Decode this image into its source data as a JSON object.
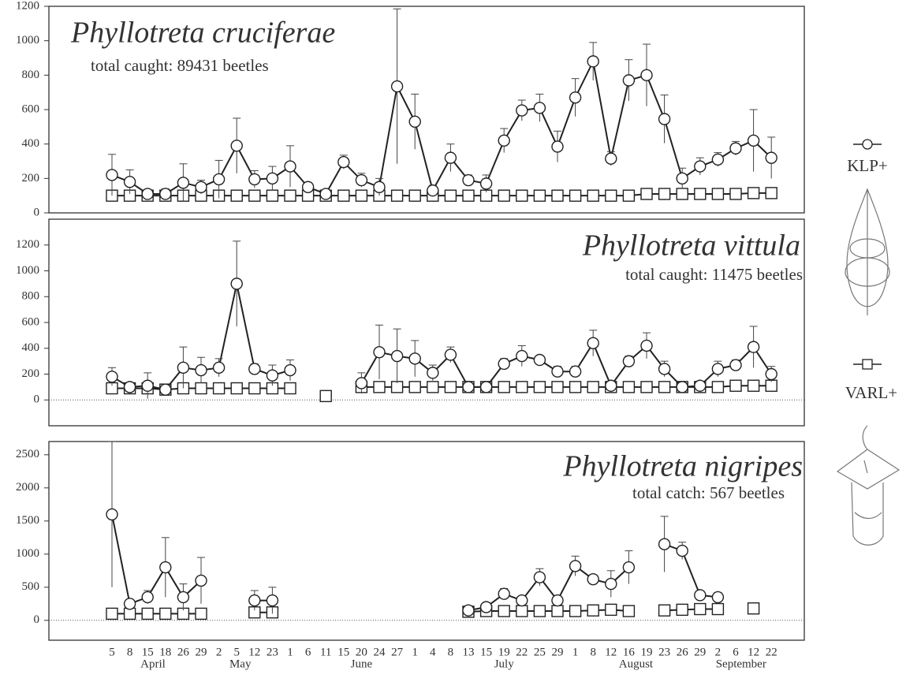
{
  "chart_data": [
    {
      "type": "line",
      "title": "Phyllotreta cruciferae",
      "subtitle": "total caught: 89431 beetles",
      "ylim": [
        0,
        1200
      ],
      "yticks": [
        0,
        200,
        400,
        600,
        800,
        1000,
        1200
      ],
      "series": [
        {
          "name": "KLP+",
          "marker": "circle",
          "color": "#222222",
          "values": [
            220,
            180,
            110,
            110,
            175,
            150,
            195,
            390,
            195,
            200,
            270,
            150,
            110,
            295,
            190,
            150,
            735,
            530,
            130,
            320,
            190,
            170,
            420,
            595,
            610,
            385,
            670,
            880,
            315,
            770,
            800,
            545,
            200,
            270,
            310,
            375,
            420,
            320
          ],
          "errors": [
            120,
            70,
            20,
            30,
            110,
            40,
            110,
            160,
            50,
            70,
            120,
            20,
            20,
            40,
            40,
            50,
            450,
            160,
            30,
            80,
            30,
            50,
            70,
            60,
            80,
            90,
            110,
            110,
            40,
            120,
            180,
            140,
            60,
            50,
            40,
            40,
            180,
            120
          ]
        },
        {
          "name": "VARL+",
          "marker": "square",
          "color": "#222222",
          "values": [
            100,
            100,
            100,
            100,
            100,
            100,
            100,
            100,
            100,
            100,
            100,
            100,
            100,
            100,
            100,
            100,
            100,
            100,
            100,
            100,
            100,
            100,
            100,
            100,
            100,
            100,
            100,
            100,
            100,
            100,
            110,
            110,
            110,
            110,
            110,
            110,
            115,
            115
          ]
        }
      ]
    },
    {
      "type": "line",
      "title": "Phyllotreta vittula",
      "subtitle": "total caught: 11475 beetles",
      "ylim": [
        -200,
        1400
      ],
      "yticks": [
        0,
        200,
        400,
        600,
        800,
        1000,
        1200
      ],
      "zero_line": true,
      "series": [
        {
          "marker": "circle",
          "color": "#222222",
          "values": [
            180,
            100,
            110,
            80,
            250,
            230,
            250,
            900,
            240,
            190,
            230,
            null,
            null,
            null,
            130,
            370,
            340,
            320,
            210,
            350,
            100,
            100,
            280,
            340,
            310,
            220,
            220,
            440,
            110,
            300,
            420,
            240,
            100,
            110,
            240,
            270,
            410,
            200
          ],
          "errors": [
            70,
            20,
            100,
            20,
            160,
            100,
            70,
            330,
            40,
            80,
            80,
            null,
            null,
            null,
            80,
            210,
            210,
            140,
            60,
            60,
            20,
            20,
            40,
            80,
            20,
            40,
            40,
            100,
            20,
            40,
            100,
            60,
            30,
            30,
            60,
            40,
            160,
            60
          ]
        },
        {
          "marker": "square",
          "color": "#222222",
          "values": [
            90,
            90,
            90,
            80,
            90,
            90,
            90,
            90,
            90,
            90,
            90,
            null,
            30,
            null,
            100,
            100,
            100,
            100,
            100,
            100,
            100,
            100,
            100,
            100,
            100,
            100,
            100,
            100,
            100,
            100,
            100,
            100,
            100,
            100,
            100,
            110,
            110,
            110
          ]
        }
      ]
    },
    {
      "type": "line",
      "title": "Phyllotreta nigripes",
      "subtitle": "total catch: 567 beetles",
      "ylim": [
        -300,
        2700
      ],
      "yticks": [
        0,
        500,
        1000,
        1500,
        2000,
        2500
      ],
      "zero_line": true,
      "categories": [
        "5",
        "8",
        "15",
        "18",
        "26",
        "29",
        "2",
        "5",
        "12",
        "23",
        "1",
        "6",
        "11",
        "15",
        "20",
        "24",
        "27",
        "1",
        "4",
        "8",
        "13",
        "15",
        "19",
        "22",
        "25",
        "29",
        "1",
        "8",
        "12",
        "16",
        "19",
        "23",
        "26",
        "29",
        "2",
        "6",
        "12",
        "22"
      ],
      "months": [
        "April",
        "May",
        "June",
        "July",
        "August",
        "September"
      ],
      "series": [
        {
          "marker": "circle",
          "color": "#222222",
          "values": [
            1600,
            250,
            350,
            800,
            350,
            600,
            null,
            null,
            300,
            300,
            null,
            null,
            null,
            null,
            null,
            null,
            null,
            null,
            null,
            null,
            150,
            200,
            400,
            300,
            650,
            300,
            820,
            620,
            550,
            800,
            null,
            1150,
            1050,
            380,
            350,
            null,
            null,
            null
          ],
          "errors": [
            1100,
            50,
            100,
            450,
            200,
            350,
            null,
            null,
            150,
            200,
            null,
            null,
            null,
            null,
            null,
            null,
            null,
            null,
            null,
            null,
            30,
            50,
            80,
            40,
            130,
            60,
            150,
            60,
            200,
            250,
            null,
            420,
            130,
            60,
            70,
            null,
            null,
            null
          ]
        },
        {
          "marker": "square",
          "color": "#222222",
          "values": [
            100,
            100,
            100,
            100,
            100,
            100,
            null,
            null,
            120,
            120,
            null,
            null,
            null,
            null,
            null,
            null,
            null,
            null,
            null,
            null,
            130,
            140,
            140,
            140,
            140,
            140,
            140,
            150,
            160,
            140,
            null,
            150,
            160,
            170,
            170,
            null,
            180,
            null
          ]
        }
      ]
    }
  ]
}
